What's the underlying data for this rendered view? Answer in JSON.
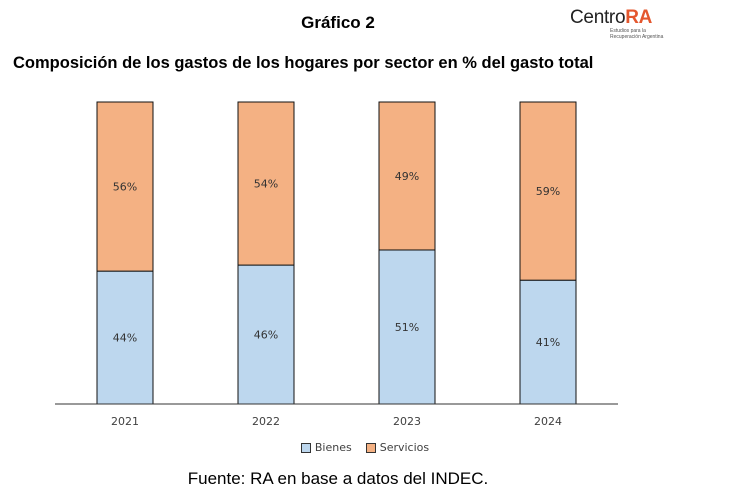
{
  "heading": "Gráfico 2",
  "logo": {
    "brand_text": "Centro",
    "brand_accent": "RA",
    "tagline_1": "Estudios para la",
    "tagline_2": "Recuperación Argentina"
  },
  "colors": {
    "bienes": "#bdd7ee",
    "servicios": "#f4b183",
    "logo_accent": "#e4572e"
  },
  "chart_data": {
    "type": "bar",
    "stacked": true,
    "title": "Composición de los gastos de los hogares por sector en % del gasto total",
    "categories": [
      "2021",
      "2022",
      "2023",
      "2024"
    ],
    "series": [
      {
        "name": "Bienes",
        "values": [
          44,
          46,
          51,
          41
        ],
        "labels": [
          "44%",
          "46%",
          "51%",
          "41%"
        ]
      },
      {
        "name": "Servicios",
        "values": [
          56,
          54,
          49,
          59
        ],
        "labels": [
          "56%",
          "54%",
          "49%",
          "59%"
        ]
      }
    ],
    "ylim": [
      0,
      100
    ],
    "grid": false,
    "legend_position": "bottom"
  },
  "source": "Fuente: RA en base a datos del INDEC."
}
